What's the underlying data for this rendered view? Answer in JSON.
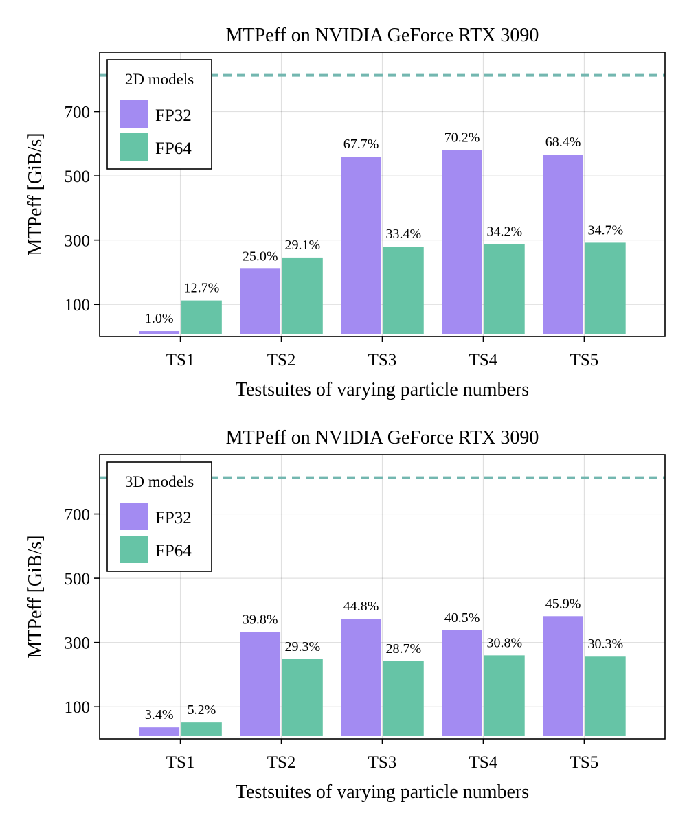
{
  "colors": {
    "fp32": "#a38bf2",
    "fp64": "#66c4a6",
    "peak_line": "#73b7b0"
  },
  "chart_data": [
    {
      "type": "bar",
      "title": "MTPeff on NVIDIA GeForce RTX 3090",
      "xlabel": "Testsuites of varying particle numbers",
      "ylabel": "MTPeff [GiB/s]",
      "categories": [
        "TS1",
        "TS2",
        "TS3",
        "TS4",
        "TS5"
      ],
      "ylim": [
        0,
        885
      ],
      "yticks": [
        100,
        300,
        500,
        700
      ],
      "reference_line": 813,
      "grid": true,
      "legend": {
        "title": "2D models",
        "position": "top-left"
      },
      "series": [
        {
          "name": "FP32",
          "color_key": "fp32",
          "values": [
            17,
            211,
            560,
            580,
            566
          ],
          "labels": [
            "1.0%",
            "25.0%",
            "67.7%",
            "70.2%",
            "68.4%"
          ]
        },
        {
          "name": "FP64",
          "color_key": "fp64",
          "values": [
            112,
            246,
            280,
            287,
            292
          ],
          "labels": [
            "12.7%",
            "29.1%",
            "33.4%",
            "34.2%",
            "34.7%"
          ]
        }
      ]
    },
    {
      "type": "bar",
      "title": "MTPeff on NVIDIA GeForce RTX 3090",
      "xlabel": "Testsuites of varying particle numbers",
      "ylabel": "MTPeff [GiB/s]",
      "categories": [
        "TS1",
        "TS2",
        "TS3",
        "TS4",
        "TS5"
      ],
      "ylim": [
        0,
        885
      ],
      "yticks": [
        100,
        300,
        500,
        700
      ],
      "reference_line": 813,
      "grid": true,
      "legend": {
        "title": "3D models",
        "position": "top-left"
      },
      "series": [
        {
          "name": "FP32",
          "color_key": "fp32",
          "values": [
            36,
            332,
            374,
            338,
            382
          ],
          "labels": [
            "3.4%",
            "39.8%",
            "44.8%",
            "40.5%",
            "45.9%"
          ]
        },
        {
          "name": "FP64",
          "color_key": "fp64",
          "values": [
            51,
            248,
            242,
            260,
            256
          ],
          "labels": [
            "5.2%",
            "29.3%",
            "28.7%",
            "30.8%",
            "30.3%"
          ]
        }
      ]
    }
  ]
}
